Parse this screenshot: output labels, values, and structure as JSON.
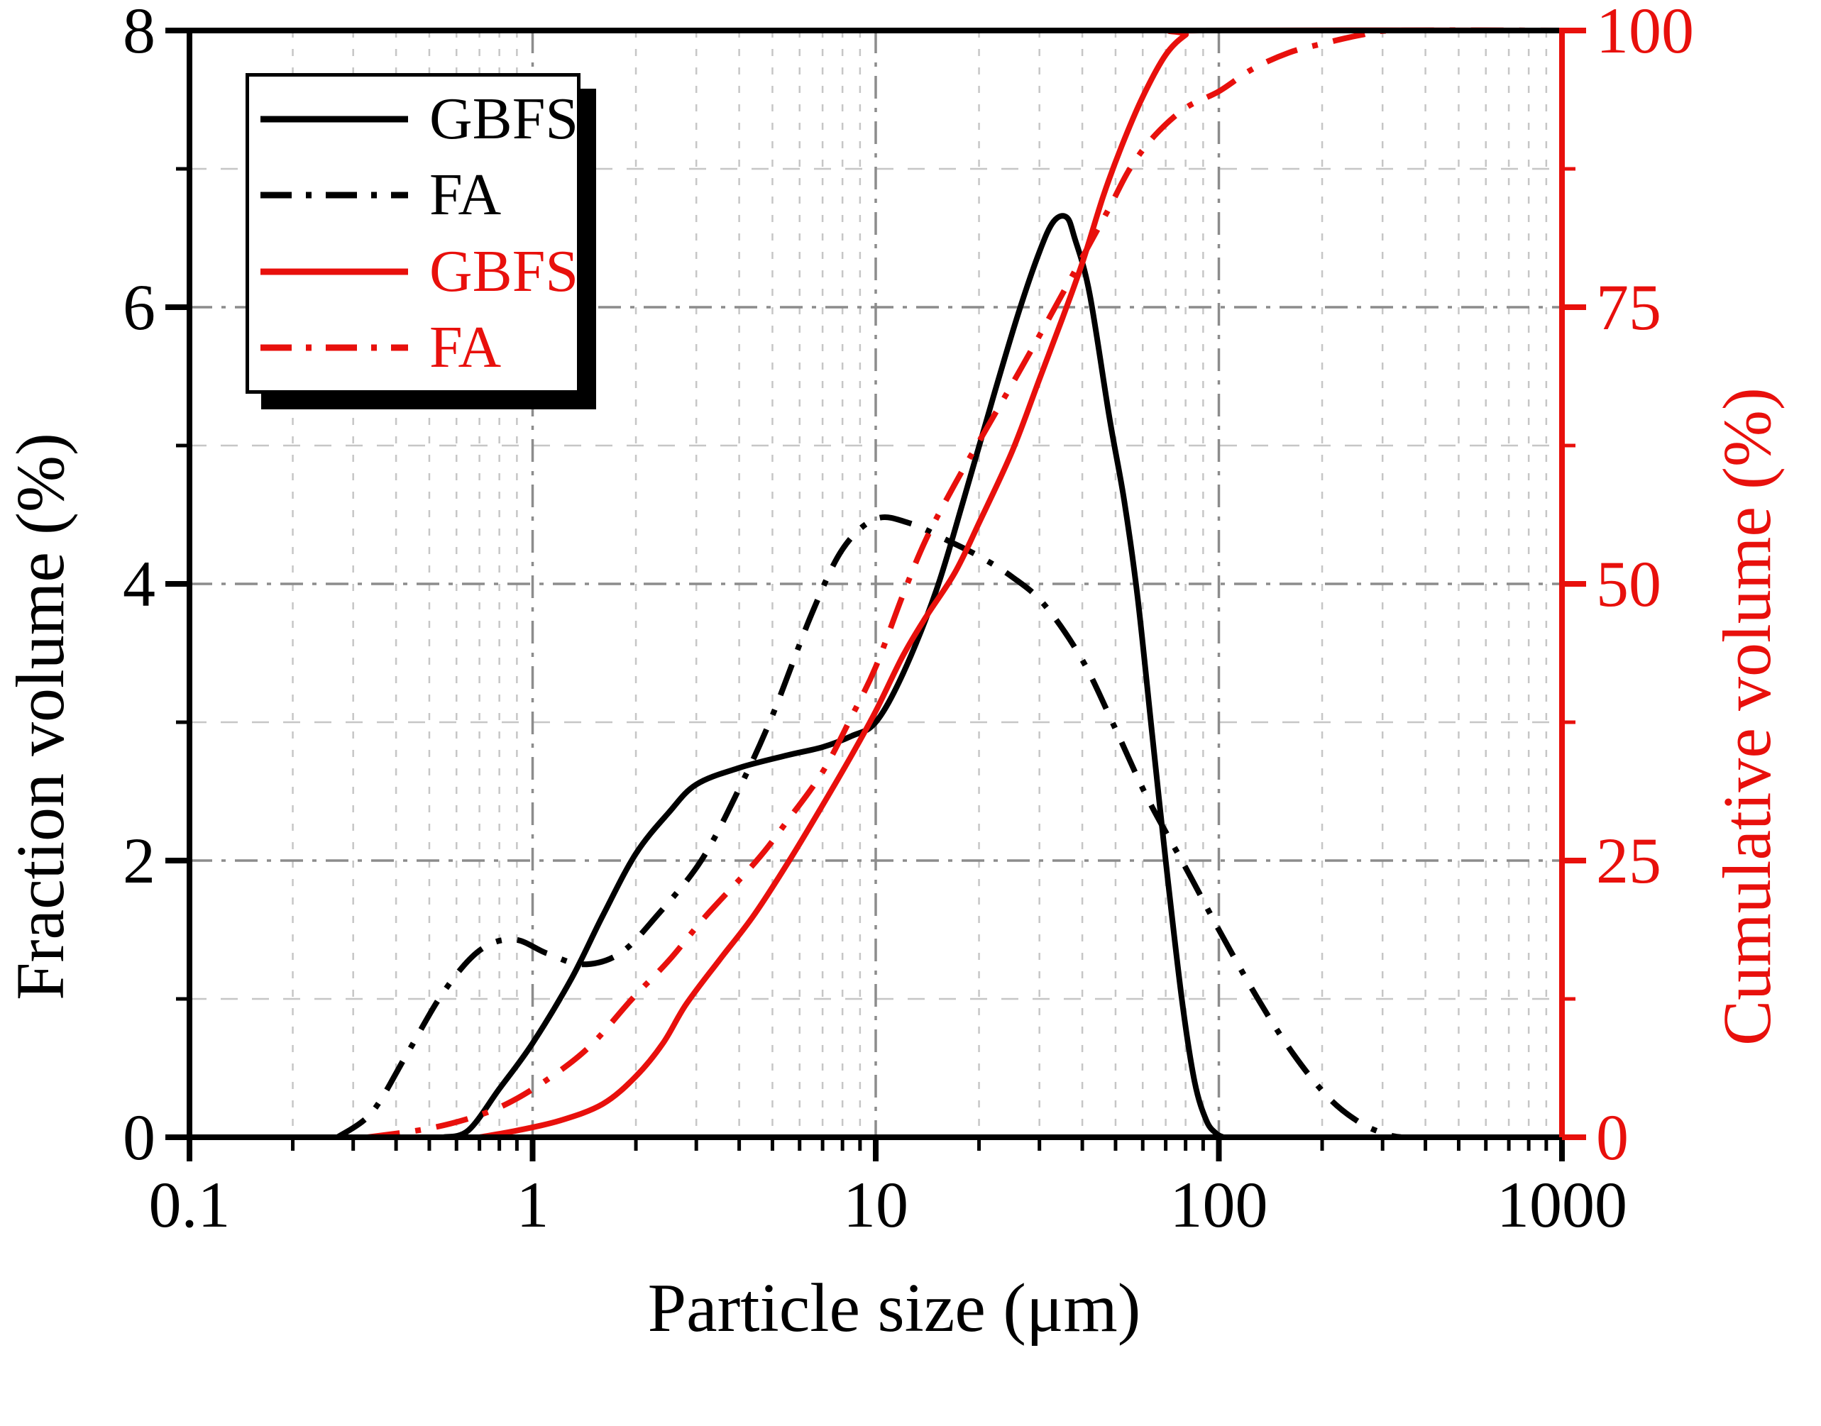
{
  "style": {
    "accent_red": "#e8100c",
    "black": "#000000",
    "grid_major_color": "#8c8c8c",
    "grid_minor_color": "#c6c6c6",
    "background": "#ffffff"
  },
  "legend": {
    "items": [
      {
        "label": "GBFS",
        "color": "#000000",
        "line": "solid"
      },
      {
        "label": "FA",
        "color": "#000000",
        "line": "dashdot"
      },
      {
        "label": "GBFS",
        "color": "#e8100c",
        "line": "solid"
      },
      {
        "label": "FA",
        "color": "#e8100c",
        "line": "dashdot"
      }
    ]
  },
  "chart_data": {
    "type": "line",
    "title": "",
    "xlabel": "Particle size (μm)",
    "ylabel_left": "Fraction volume (%)",
    "ylabel_right": "Cumulative volume (%)",
    "x_scale": "log",
    "x_range": [
      0.1,
      1000
    ],
    "y_left_range": [
      0,
      8
    ],
    "y_right_range": [
      0,
      100
    ],
    "grid": {
      "major": "dash-dot gray",
      "minor": "light dashed",
      "vertical_major_at": [
        1,
        10,
        100
      ],
      "horizontal_major_at": [
        2,
        4,
        6
      ],
      "horizontal_minor_at": [
        1,
        3,
        5,
        7
      ]
    },
    "legend_position": "upper-left",
    "x_ticks": [
      {
        "label": "0.1",
        "value": 0.1
      },
      {
        "label": "1",
        "value": 1
      },
      {
        "label": "10",
        "value": 10
      },
      {
        "label": "100",
        "value": 100
      },
      {
        "label": "1000",
        "value": 1000
      }
    ],
    "y_left_ticks": [
      {
        "label": "0",
        "value": 0
      },
      {
        "label": "2",
        "value": 2
      },
      {
        "label": "4",
        "value": 4
      },
      {
        "label": "6",
        "value": 6
      },
      {
        "label": "8",
        "value": 8
      }
    ],
    "y_right_ticks": [
      {
        "label": "0",
        "value": 0
      },
      {
        "label": "25",
        "value": 25
      },
      {
        "label": "50",
        "value": 50
      },
      {
        "label": "75",
        "value": 75
      },
      {
        "label": "100",
        "value": 100
      }
    ],
    "series": [
      {
        "name": "GBFS",
        "axis": "left",
        "unit": "%",
        "color": "#000000",
        "line": "solid",
        "x": [
          0.55,
          0.65,
          0.8,
          1.0,
          1.3,
          1.6,
          2.0,
          2.5,
          3.0,
          4.0,
          5.5,
          7.0,
          8.5,
          10,
          12,
          15,
          18,
          22,
          26,
          30,
          33,
          36,
          38,
          42,
          48,
          53,
          58,
          64,
          70,
          78,
          85,
          92,
          98,
          103
        ],
        "y": [
          0,
          0.05,
          0.35,
          0.68,
          1.15,
          1.6,
          2.05,
          2.35,
          2.55,
          2.67,
          2.76,
          2.82,
          2.9,
          3.0,
          3.35,
          3.95,
          4.6,
          5.35,
          5.95,
          6.4,
          6.62,
          6.65,
          6.5,
          6.1,
          5.2,
          4.6,
          3.9,
          2.9,
          2.0,
          1.0,
          0.4,
          0.12,
          0.03,
          0
        ]
      },
      {
        "name": "FA",
        "axis": "left",
        "unit": "%",
        "color": "#000000",
        "line": "dashdot",
        "x": [
          0.27,
          0.34,
          0.43,
          0.55,
          0.7,
          0.88,
          1.1,
          1.4,
          1.8,
          2.3,
          3.1,
          4.0,
          5.0,
          6.5,
          8.0,
          10,
          12.5,
          16,
          20,
          25,
          31,
          40,
          50,
          62,
          80,
          100,
          130,
          165,
          210,
          260,
          310,
          340
        ],
        "y": [
          0,
          0.18,
          0.6,
          1.05,
          1.35,
          1.43,
          1.33,
          1.25,
          1.33,
          1.6,
          2.0,
          2.52,
          3.05,
          3.78,
          4.25,
          4.47,
          4.44,
          4.32,
          4.2,
          4.05,
          3.85,
          3.45,
          2.95,
          2.45,
          1.95,
          1.5,
          1.0,
          0.6,
          0.28,
          0.1,
          0.02,
          0
        ]
      },
      {
        "name": "GBFS",
        "axis": "right",
        "unit": "%",
        "color": "#e8100c",
        "line": "solid",
        "x": [
          0.7,
          0.9,
          1.2,
          1.6,
          2.0,
          2.4,
          2.8,
          3.5,
          4.4,
          5.6,
          7.0,
          8.5,
          10,
          12,
          14,
          17,
          20,
          25,
          30,
          35,
          40,
          46,
          52,
          60,
          70,
          80,
          88,
          1000
        ],
        "y": [
          0,
          0.6,
          1.5,
          3,
          5.5,
          8.5,
          12,
          16,
          20,
          25,
          30,
          34.5,
          38.5,
          43.5,
          47,
          51,
          55.5,
          62,
          68.5,
          74,
          79,
          85,
          89.5,
          94,
          97.8,
          99.6,
          100,
          100
        ]
      },
      {
        "name": "FA",
        "axis": "right",
        "unit": "%",
        "color": "#e8100c",
        "line": "dashdot",
        "x": [
          0.33,
          0.5,
          0.7,
          0.9,
          1.2,
          1.5,
          1.95,
          2.5,
          3.2,
          4.5,
          5.5,
          7.0,
          8.5,
          10,
          12,
          14,
          17,
          21,
          26,
          32,
          40,
          48,
          55,
          65,
          80,
          100,
          125,
          160,
          200,
          260,
          330,
          1000
        ],
        "y": [
          0,
          0.8,
          2,
          3.5,
          6,
          8.5,
          12.5,
          16,
          20,
          25,
          28.5,
          33,
          38,
          42.5,
          49,
          54,
          59,
          64,
          69,
          74,
          79.5,
          84,
          87.5,
          90.5,
          93,
          94.5,
          96.5,
          98,
          98.8,
          99.6,
          100,
          100
        ]
      }
    ]
  }
}
